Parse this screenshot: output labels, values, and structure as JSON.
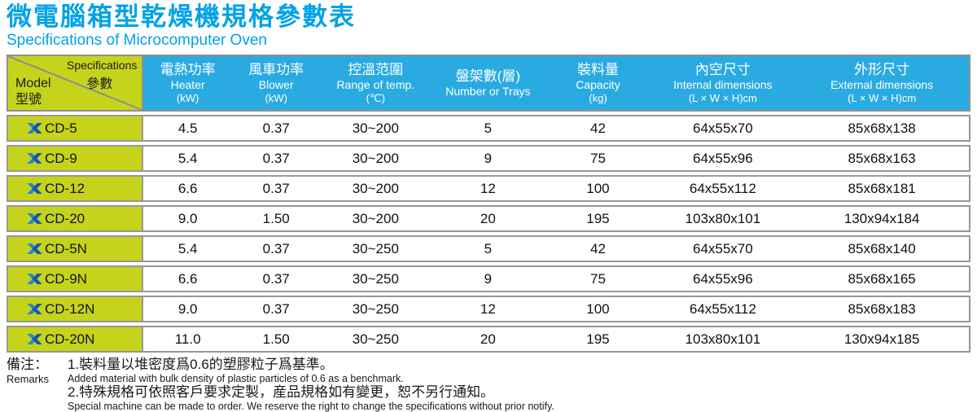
{
  "header": {
    "title": "微電腦箱型乾燥機規格參數表",
    "subtitle": "Specifications of Microcomputer Oven"
  },
  "table": {
    "corner": {
      "specifications_en": "Specifications",
      "specifications_zh": "參數",
      "model_en": "Model",
      "model_zh": "型號"
    },
    "columns": [
      {
        "zh": "電熱功率",
        "en": "Heater",
        "unit": "(kW)"
      },
      {
        "zh": "風車功率",
        "en": "Blower",
        "unit": "(kW)"
      },
      {
        "zh": "控溫范圍",
        "en": "Range of temp.",
        "unit": "(℃)"
      },
      {
        "zh": "盤架數(層)",
        "en": "Number or Trays",
        "unit": ""
      },
      {
        "zh": "裝料量",
        "en": "Capacity",
        "unit": "(kg)"
      },
      {
        "zh": "內空尺寸",
        "en": "Internal dimensions",
        "unit": "(L × W × H)cm"
      },
      {
        "zh": "外形尺寸",
        "en": "External dimensions",
        "unit": "(L × W × H)cm"
      }
    ],
    "rows": [
      {
        "model": "CD-5",
        "heater": "4.5",
        "blower": "0.37",
        "range": "30~200",
        "trays": "5",
        "capacity": "42",
        "internal": "64x55x70",
        "external": "85x68x138"
      },
      {
        "model": "CD-9",
        "heater": "5.4",
        "blower": "0.37",
        "range": "30~200",
        "trays": "9",
        "capacity": "75",
        "internal": "64x55x96",
        "external": "85x68x163"
      },
      {
        "model": "CD-12",
        "heater": "6.6",
        "blower": "0.37",
        "range": "30~200",
        "trays": "12",
        "capacity": "100",
        "internal": "64x55x112",
        "external": "85x68x181"
      },
      {
        "model": "CD-20",
        "heater": "9.0",
        "blower": "1.50",
        "range": "30~200",
        "trays": "20",
        "capacity": "195",
        "internal": "103x80x101",
        "external": "130x94x184"
      },
      {
        "model": "CD-5N",
        "heater": "5.4",
        "blower": "0.37",
        "range": "30~250",
        "trays": "5",
        "capacity": "42",
        "internal": "64x55x70",
        "external": "85x68x140"
      },
      {
        "model": "CD-9N",
        "heater": "6.6",
        "blower": "0.37",
        "range": "30~250",
        "trays": "9",
        "capacity": "75",
        "internal": "64x55x96",
        "external": "85x68x165"
      },
      {
        "model": "CD-12N",
        "heater": "9.0",
        "blower": "0.37",
        "range": "30~250",
        "trays": "12",
        "capacity": "100",
        "internal": "64x55x112",
        "external": "85x68x183"
      },
      {
        "model": "CD-20N",
        "heater": "11.0",
        "blower": "1.50",
        "range": "30~250",
        "trays": "20",
        "capacity": "195",
        "internal": "103x80x101",
        "external": "130x94x185"
      }
    ]
  },
  "remarks": {
    "label_zh": "備注：",
    "label_en": "Remarks",
    "notes": [
      {
        "zh": "1.裝料量以堆密度爲0.6的塑膠粒子爲基準。",
        "en": "Added material with bulk density of plastic particles of 0.6 as a benchmark."
      },
      {
        "zh": "2.特殊規格可依照客戶要求定製，産品規格如有變更，恕不另行通知。",
        "en": "Special machine can be made to order. We reserve the right to change the specifications without prior notify."
      }
    ]
  },
  "icons": {
    "model_logo": "brand-x-icon"
  },
  "colors": {
    "title_blue": "#00a2e8",
    "header_cyan": "#29abe2",
    "model_lime": "#c5d41b",
    "border_gray": "#8f8f8f",
    "logo_blue_dark": "#1559a8",
    "logo_blue_mid": "#2e86c8"
  }
}
